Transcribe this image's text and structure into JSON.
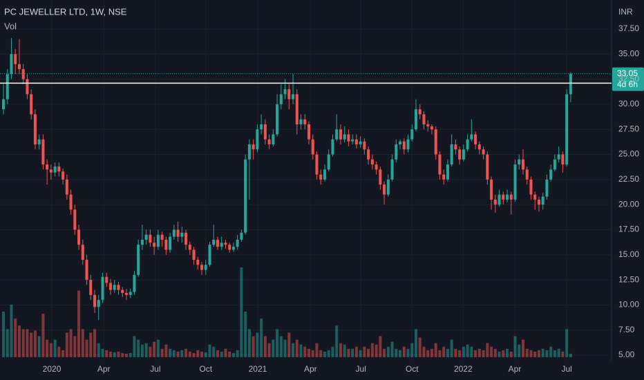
{
  "chart_data": {
    "type": "candlestick",
    "title": "PC JEWELLER LTD, 1W, NSE",
    "volume_label": "Vol",
    "currency": "INR",
    "countdown": "4d 6h",
    "up_color": "#26a69a",
    "down_color": "#ef5350",
    "line_color": "#ffffff",
    "grid": true,
    "hline": 32.1,
    "xlim": [
      -0.87,
      153.3
    ],
    "ylim": [
      4.45,
      40.39
    ],
    "yticks": [
      {
        "value": 5,
        "label": "5.00"
      },
      {
        "value": 7.5,
        "label": "7.50"
      },
      {
        "value": 10,
        "label": "10.00"
      },
      {
        "value": 12.5,
        "label": "12.50"
      },
      {
        "value": 15,
        "label": "15.00"
      },
      {
        "value": 17.5,
        "label": "17.50"
      },
      {
        "value": 20,
        "label": "20.00"
      },
      {
        "value": 22.5,
        "label": "22.50"
      },
      {
        "value": 25,
        "label": "25.00"
      },
      {
        "value": 27.5,
        "label": "27.50"
      },
      {
        "value": 30,
        "label": "30.00"
      },
      {
        "value": 32.5,
        "label": "32.50"
      },
      {
        "value": 35,
        "label": "35.00"
      },
      {
        "value": 37.5,
        "label": "37.50"
      }
    ],
    "xticks": [
      {
        "value": 12.2,
        "label": "2020"
      },
      {
        "value": 25.3,
        "label": "Apr"
      },
      {
        "value": 38.3,
        "label": "Jul"
      },
      {
        "value": 51,
        "label": "Oct"
      },
      {
        "value": 64.1,
        "label": "2021"
      },
      {
        "value": 77.4,
        "label": "Apr"
      },
      {
        "value": 90.1,
        "label": "Jul"
      },
      {
        "value": 103,
        "label": "Oct"
      },
      {
        "value": 115.9,
        "label": "2022"
      },
      {
        "value": 128.9,
        "label": "Apr"
      },
      {
        "value": 142,
        "label": "Jul"
      }
    ],
    "open": [
      29.5,
      30.5,
      33,
      35,
      34,
      33.5,
      32.5,
      31,
      29,
      26,
      26.5,
      24,
      23.5,
      23.2,
      23.8,
      23.3,
      22.5,
      21,
      19.5,
      17.5,
      16,
      14.5,
      12.5,
      11,
      9.8,
      10.5,
      12.8,
      12.2,
      11.5,
      12,
      11.5,
      11.2,
      11,
      11.3,
      13,
      16,
      16.5,
      17,
      16.2,
      15.8,
      17,
      16.5,
      15.5,
      16.8,
      17.5,
      16.8,
      17.2,
      16,
      15.5,
      14.5,
      14,
      13.5,
      14,
      16,
      16.5,
      15.8,
      16.2,
      16,
      15.5,
      15.8,
      16.5,
      17.2,
      24.5,
      26,
      25.5,
      27.5,
      28,
      26.5,
      26,
      27,
      30,
      31,
      31.5,
      30.5,
      31,
      28,
      28.5,
      28,
      26.5,
      25,
      23,
      22.5,
      23.5,
      25,
      26.5,
      27.5,
      26.5,
      27,
      26.3,
      26.5,
      26,
      26.3,
      25.5,
      24.5,
      24,
      23.5,
      22,
      21,
      22.5,
      24.5,
      26,
      26.3,
      25.5,
      26.5,
      27.5,
      29.5,
      29,
      28,
      27.8,
      27.5,
      25,
      23,
      22.5,
      24,
      26,
      25.5,
      24.5,
      25.5,
      26.5,
      27,
      26,
      25.5,
      25,
      22.5,
      20.5,
      20,
      21,
      20.5,
      21,
      20.5,
      24,
      24.5,
      23.5,
      22.5,
      21,
      20.5,
      20,
      20.8,
      22.5,
      23.5,
      24.5,
      25,
      24,
      31
    ],
    "high": [
      32,
      33.5,
      36.6,
      35.5,
      36.5,
      34,
      33,
      31.5,
      29.5,
      27,
      27,
      24.5,
      24,
      24.2,
      24.2,
      23.6,
      23,
      21.5,
      20,
      18,
      16.5,
      15,
      13,
      11.5,
      11,
      13.2,
      13.2,
      12.6,
      12.5,
      12.3,
      11.8,
      11.6,
      11.6,
      13.4,
      16.5,
      18,
      17.5,
      17.5,
      16.8,
      17.5,
      17.3,
      16.8,
      17.2,
      18,
      18.3,
      17.8,
      17.5,
      16.3,
      15.8,
      14.8,
      14.3,
      14.5,
      16.3,
      18,
      16.8,
      16.8,
      16.5,
      16.2,
      16.2,
      17,
      17.5,
      25,
      26.5,
      26.5,
      28,
      29,
      28.5,
      27,
      27.5,
      31,
      32,
      32.5,
      32,
      33,
      31.5,
      29,
      29,
      28.3,
      27,
      25.3,
      23.5,
      24,
      25.5,
      27,
      29,
      28,
      27.8,
      27.5,
      27,
      27,
      26.8,
      26.6,
      25.8,
      25,
      24.3,
      23.8,
      22.3,
      23,
      25,
      26.5,
      26.5,
      26.6,
      27,
      28,
      30.5,
      30,
      29.3,
      28.4,
      28,
      27.8,
      25.3,
      23.5,
      24.5,
      27,
      26.5,
      25.8,
      26,
      27,
      28.5,
      27.3,
      26.3,
      25.8,
      25.3,
      22.8,
      21,
      21.5,
      21.3,
      21.5,
      21.3,
      24.5,
      25,
      25.5,
      23.8,
      22.8,
      21.3,
      20.8,
      21.2,
      23,
      24,
      25,
      25.8,
      25.3,
      31.5,
      33.2
    ],
    "low": [
      29,
      30,
      32.5,
      33,
      33,
      32,
      30.5,
      28.5,
      25.5,
      25.5,
      23.5,
      22,
      22.5,
      22.8,
      22.8,
      22,
      20.5,
      19,
      17,
      15.5,
      14,
      12,
      10.5,
      9.2,
      8.5,
      10.2,
      11.8,
      11,
      11.2,
      11,
      10.8,
      10.5,
      10.7,
      11,
      12.8,
      15.5,
      16,
      15.8,
      15,
      15.5,
      15.8,
      15,
      15.2,
      16.5,
      16.3,
      16.2,
      15.5,
      15,
      14,
      13.5,
      13,
      13,
      13.8,
      15.8,
      15.5,
      15.5,
      15.6,
      15.2,
      15.3,
      15.5,
      16.3,
      17,
      20.5,
      24.5,
      25.2,
      27,
      26,
      25.5,
      25.8,
      26.8,
      29.5,
      30.5,
      29.5,
      30,
      27,
      27.5,
      27.5,
      26,
      24.5,
      22.5,
      22,
      22.3,
      23.3,
      24.8,
      26.3,
      26,
      26.2,
      25.8,
      26,
      25.6,
      25.7,
      25,
      24,
      23.5,
      23,
      21.5,
      20,
      20.8,
      22.3,
      24.2,
      25.5,
      25,
      25.2,
      26.3,
      27.3,
      28.5,
      27.5,
      27.3,
      27,
      24.5,
      22.5,
      22,
      22.3,
      23.8,
      25,
      24,
      24.3,
      25.3,
      26.3,
      25.5,
      25,
      24.5,
      22,
      19.5,
      19.2,
      19.8,
      20,
      20.2,
      19,
      20.3,
      23.5,
      23,
      22,
      20.5,
      19.5,
      19.3,
      19.5,
      20.5,
      22.3,
      23.3,
      24.2,
      23.2,
      23.8,
      30.2
    ],
    "close": [
      30.5,
      33,
      35,
      34,
      33.5,
      32.5,
      31,
      29,
      26,
      26.5,
      24,
      23.5,
      23.2,
      23.8,
      23.3,
      22.5,
      21,
      19.5,
      17.5,
      16,
      14.5,
      12.5,
      11,
      9.8,
      10.5,
      12.8,
      12.2,
      11.5,
      12,
      11.5,
      11.2,
      11,
      11.3,
      13,
      16,
      16.5,
      17,
      16.2,
      15.8,
      17,
      16.5,
      15.5,
      16.8,
      17.5,
      16.8,
      17.2,
      16,
      15.5,
      14.5,
      14,
      13.5,
      14,
      16,
      16.5,
      15.8,
      16.2,
      16,
      15.5,
      15.8,
      16.5,
      17.2,
      24.5,
      26,
      25.5,
      27.5,
      28,
      26.5,
      26,
      27,
      30,
      31,
      31.5,
      30.5,
      31,
      28,
      28.5,
      28,
      26.5,
      25,
      23,
      22.5,
      23.5,
      25,
      26.5,
      27.5,
      26.5,
      27,
      26.3,
      26.5,
      26,
      26.3,
      25.5,
      24.5,
      24,
      23.5,
      22,
      21,
      22.5,
      24.5,
      26,
      26.3,
      25.5,
      26.5,
      27.5,
      29.5,
      29,
      28,
      27.8,
      27.5,
      25,
      23,
      22.5,
      24,
      26,
      25.5,
      24.5,
      25.5,
      26.5,
      27,
      26,
      25.5,
      25,
      22.5,
      20.5,
      20,
      21,
      20.5,
      21,
      20.5,
      24,
      24.5,
      23.5,
      22.5,
      21,
      20.5,
      20,
      20.8,
      22.5,
      23.5,
      24.5,
      25,
      24,
      31,
      33.05
    ],
    "volume": [
      65,
      40,
      75,
      55,
      45,
      40,
      40,
      35,
      38,
      30,
      62,
      25,
      20,
      25,
      15,
      10,
      35,
      40,
      30,
      95,
      40,
      25,
      35,
      40,
      20,
      12,
      10,
      8,
      7,
      8,
      6,
      5,
      6,
      30,
      25,
      18,
      20,
      15,
      22,
      25,
      12,
      18,
      12,
      10,
      8,
      10,
      12,
      8,
      6,
      10,
      8,
      7,
      18,
      15,
      10,
      8,
      12,
      8,
      6,
      10,
      128,
      65,
      40,
      30,
      35,
      55,
      30,
      20,
      25,
      40,
      30,
      25,
      35,
      20,
      25,
      18,
      15,
      12,
      10,
      20,
      10,
      8,
      10,
      15,
      45,
      20,
      18,
      12,
      12,
      15,
      10,
      15,
      12,
      20,
      18,
      30,
      12,
      15,
      22,
      12,
      10,
      15,
      12,
      20,
      40,
      28,
      15,
      10,
      12,
      20,
      10,
      15,
      12,
      25,
      12,
      10,
      15,
      18,
      15,
      10,
      12,
      10,
      20,
      15,
      12,
      8,
      10,
      12,
      8,
      30,
      18,
      25,
      12,
      10,
      8,
      10,
      12,
      10,
      15,
      10,
      12,
      8,
      40,
      5
    ]
  }
}
